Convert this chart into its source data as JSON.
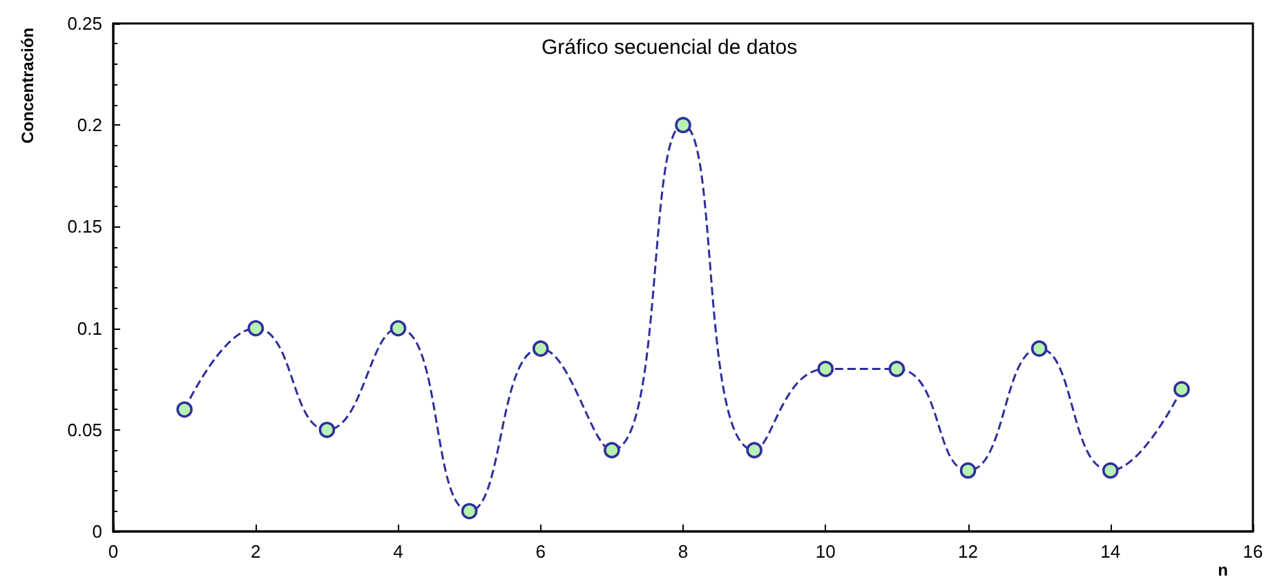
{
  "chart_data": {
    "type": "line",
    "title": "Gráfico secuencial de datos",
    "xlabel": "n",
    "ylabel": "Concentración",
    "x": [
      1,
      2,
      3,
      4,
      5,
      6,
      7,
      8,
      9,
      10,
      11,
      12,
      13,
      14,
      15
    ],
    "series": [
      {
        "color": "#2e2e9e",
        "values": [
          0.06,
          0.1,
          0.05,
          0.1,
          0.01,
          0.09,
          0.04,
          0.2,
          0.04,
          0.08,
          0.08,
          0.03,
          0.09,
          0.03,
          0.07
        ]
      }
    ],
    "xlim": [
      0,
      16
    ],
    "xticks": [
      0,
      2,
      4,
      6,
      8,
      10,
      12,
      14,
      16
    ],
    "ylim": [
      0,
      0.25
    ],
    "yticks": [
      0,
      0.05,
      0.1,
      0.15,
      0.2,
      0.25
    ],
    "grid": false,
    "marker": "circle",
    "line_style": "dashed"
  }
}
